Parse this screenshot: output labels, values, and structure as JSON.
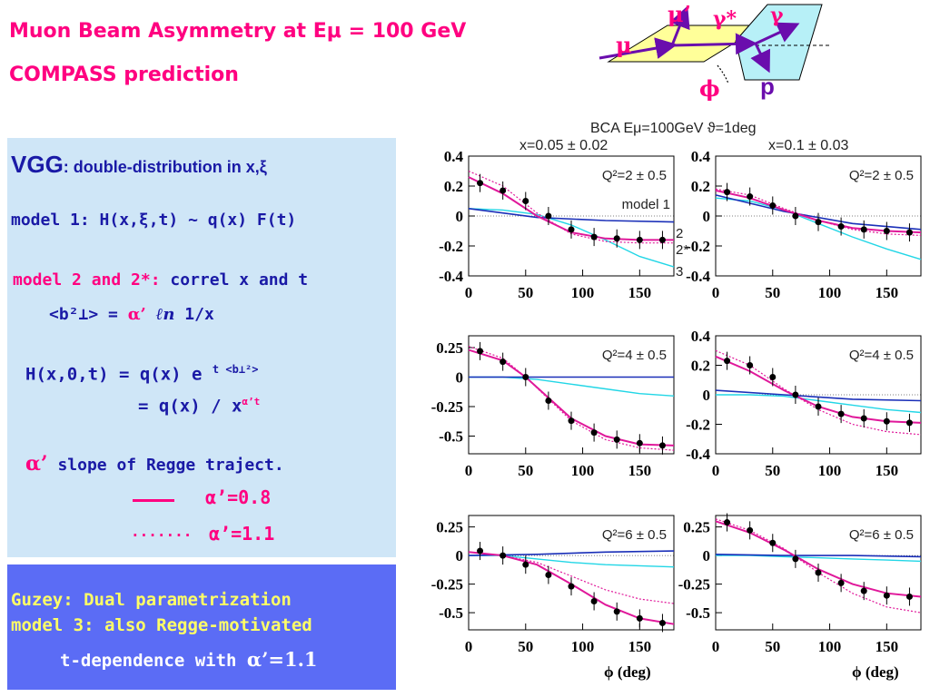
{
  "titles": {
    "line1": "Muon Beam Asymmetry at Eμ = 100 GeV",
    "line2": "COMPASS prediction"
  },
  "vgg_box": {
    "heading": "VGG",
    "heading_rest": ": double-distribution in x,ξ",
    "model1": "model 1: H(x,ξ,t) ~ q(x) F(t)",
    "model2_label": "model 2 and 2*:",
    "model2_text": "correl x and t",
    "b2_formula_lhs": "<b²⊥> =",
    "b2_formula_alpha": "α’",
    "b2_formula_ln": "ℓn",
    "b2_formula_rhs": "1/x",
    "h_formula_1": "H(x,0,t) = q(x) e",
    "h_formula_1_sup": "t <b⊥²>",
    "h_formula_2": "= q(x) / x",
    "h_formula_2_sup": "α’t",
    "alpha_symbol": "α’",
    "alpha_desc": "slope of Regge traject.",
    "legend_solid": "α’=0.8",
    "legend_dotted": "α’=1.1",
    "dotted_marker": "......."
  },
  "guzey_box": {
    "line1": "Guzey: Dual parametrization",
    "line2": "model 3:  also Regge-motivated",
    "line3": "t-dependence  with",
    "line3_alpha": "α’=1.1"
  },
  "diagram": {
    "mu": "μ",
    "mu_prime": "μ’",
    "gamma_star": "γ*",
    "gamma": "γ",
    "phi": "ϕ",
    "p": "p",
    "colors": {
      "plane1": "#ffff99",
      "plane2": "#b7f0f7",
      "arrow": "#6a0dad",
      "label": "#ff0080"
    }
  },
  "chart_header": {
    "main": "BCA   Eμ=100GeV   ϑ=1deg",
    "left": "x=0.05 ± 0.02",
    "right": "x=0.1 ± 0.03"
  },
  "chart_data": {
    "type": "line",
    "xlabel": "ϕ (deg)",
    "xlim": [
      0,
      180
    ],
    "xticks": [
      0,
      50,
      100,
      150
    ],
    "legend_labels": {
      "model1": "model 1",
      "model2": "2",
      "model2star": "2*",
      "model3": "3"
    },
    "colors": {
      "model1": "#1a2fb8",
      "model2": "#e0189a",
      "model2star": "#e0189a",
      "model3": "#22d6e6"
    },
    "panels": [
      {
        "id": "p11",
        "label": "Q²=2 ± 0.5",
        "ylim": [
          -0.4,
          0.4
        ],
        "yticks": [
          0.4,
          0.2,
          0,
          -0.2,
          -0.4
        ],
        "ytick_labels": [
          "0.4",
          "0.2",
          "0",
          "-0.2",
          "-0.4"
        ],
        "model1": {
          "x": [
            0,
            60,
            120,
            180
          ],
          "y": [
            0.05,
            -0.01,
            -0.03,
            -0.04
          ]
        },
        "model2": {
          "x": [
            0,
            30,
            60,
            90,
            120,
            150,
            180
          ],
          "y": [
            0.26,
            0.15,
            0.0,
            -0.11,
            -0.15,
            -0.16,
            -0.16
          ]
        },
        "model2star": {
          "x": [
            0,
            30,
            60,
            90,
            120,
            150,
            180
          ],
          "y": [
            0.3,
            0.2,
            0.02,
            -0.12,
            -0.17,
            -0.18,
            -0.18
          ]
        },
        "model3": {
          "x": [
            0,
            30,
            60,
            90,
            120,
            150,
            180
          ],
          "y": [
            0.05,
            0.04,
            0.01,
            -0.06,
            -0.16,
            -0.27,
            -0.34
          ]
        },
        "points": {
          "x": [
            10,
            30,
            50,
            70,
            90,
            110,
            130,
            150,
            170
          ],
          "y": [
            0.22,
            0.17,
            0.1,
            0.0,
            -0.09,
            -0.14,
            -0.15,
            -0.16,
            -0.16
          ]
        }
      },
      {
        "id": "p12",
        "label": "Q²=2 ± 0.5",
        "ylim": [
          -0.4,
          0.4
        ],
        "yticks": [
          0.4,
          0.2,
          0,
          -0.2,
          -0.4
        ],
        "ytick_labels": [
          "0.4",
          "0.2",
          "0",
          "-0.2",
          "-0.4"
        ],
        "model1": {
          "x": [
            0,
            60,
            120,
            180
          ],
          "y": [
            0.14,
            0.03,
            -0.05,
            -0.09
          ]
        },
        "model2": {
          "x": [
            0,
            30,
            60,
            90,
            120,
            150,
            180
          ],
          "y": [
            0.17,
            0.12,
            0.04,
            -0.03,
            -0.08,
            -0.1,
            -0.11
          ]
        },
        "model2star": {
          "x": [
            0,
            30,
            60,
            90,
            120,
            150,
            180
          ],
          "y": [
            0.18,
            0.14,
            0.05,
            -0.03,
            -0.09,
            -0.12,
            -0.13
          ]
        },
        "model3": {
          "x": [
            0,
            30,
            60,
            90,
            120,
            150,
            180
          ],
          "y": [
            0.12,
            0.1,
            0.04,
            -0.05,
            -0.14,
            -0.22,
            -0.29
          ]
        },
        "points": {
          "x": [
            10,
            30,
            50,
            70,
            90,
            110,
            130,
            150,
            170
          ],
          "y": [
            0.16,
            0.13,
            0.07,
            0.0,
            -0.04,
            -0.07,
            -0.09,
            -0.1,
            -0.11
          ]
        }
      },
      {
        "id": "p21",
        "label": "Q²=4 ± 0.5",
        "ylim": [
          -0.65,
          0.35
        ],
        "yticks": [
          0.25,
          0,
          -0.25,
          -0.5
        ],
        "ytick_labels": [
          "0.25",
          "0",
          "-0.25",
          "-0.5"
        ],
        "model1": {
          "x": [
            0,
            60,
            120,
            180
          ],
          "y": [
            0.0,
            0.0,
            0.0,
            0.0
          ]
        },
        "model2": {
          "x": [
            0,
            30,
            50,
            90,
            120,
            150,
            180
          ],
          "y": [
            0.23,
            0.14,
            0.0,
            -0.35,
            -0.5,
            -0.57,
            -0.58
          ]
        },
        "model2star": {
          "x": [
            0,
            30,
            50,
            90,
            120,
            150,
            180
          ],
          "y": [
            0.26,
            0.16,
            0.0,
            -0.37,
            -0.53,
            -0.6,
            -0.62
          ]
        },
        "model3": {
          "x": [
            0,
            30,
            60,
            90,
            120,
            150,
            180
          ],
          "y": [
            0.0,
            0.0,
            -0.02,
            -0.06,
            -0.1,
            -0.14,
            -0.16
          ]
        },
        "points": {
          "x": [
            10,
            30,
            50,
            70,
            90,
            110,
            130,
            150,
            170
          ],
          "y": [
            0.22,
            0.13,
            0.0,
            -0.2,
            -0.37,
            -0.47,
            -0.53,
            -0.56,
            -0.58
          ]
        }
      },
      {
        "id": "p22",
        "label": "Q²=4 ± 0.5",
        "ylim": [
          -0.4,
          0.4
        ],
        "yticks": [
          0.4,
          0.2,
          0,
          -0.2,
          -0.4
        ],
        "ytick_labels": [
          "0.4",
          "0.2",
          "0",
          "-0.2",
          "-0.4"
        ],
        "model1": {
          "x": [
            0,
            60,
            120,
            180
          ],
          "y": [
            0.03,
            0.0,
            -0.03,
            -0.04
          ]
        },
        "model2": {
          "x": [
            0,
            30,
            60,
            90,
            120,
            150,
            180
          ],
          "y": [
            0.26,
            0.16,
            0.03,
            -0.08,
            -0.15,
            -0.18,
            -0.19
          ]
        },
        "model2star": {
          "x": [
            0,
            30,
            60,
            90,
            120,
            150,
            180
          ],
          "y": [
            0.3,
            0.2,
            0.04,
            -0.1,
            -0.2,
            -0.25,
            -0.27
          ]
        },
        "model3": {
          "x": [
            0,
            30,
            60,
            90,
            120,
            150,
            180
          ],
          "y": [
            0.0,
            0.0,
            -0.01,
            -0.04,
            -0.07,
            -0.1,
            -0.12
          ]
        },
        "points": {
          "x": [
            10,
            30,
            50,
            70,
            90,
            110,
            130,
            150,
            170
          ],
          "y": [
            0.23,
            0.2,
            0.12,
            0.0,
            -0.08,
            -0.13,
            -0.16,
            -0.18,
            -0.19
          ]
        }
      },
      {
        "id": "p31",
        "label": "Q²=6 ± 0.5",
        "ylim": [
          -0.65,
          0.35
        ],
        "yticks": [
          0.25,
          0,
          -0.25,
          -0.5
        ],
        "ytick_labels": [
          "0.25",
          "0",
          "-0.25",
          "-0.5"
        ],
        "model1": {
          "x": [
            0,
            60,
            120,
            180
          ],
          "y": [
            0.0,
            0.01,
            0.03,
            0.04
          ]
        },
        "model2": {
          "x": [
            0,
            30,
            60,
            90,
            120,
            150,
            180
          ],
          "y": [
            0.03,
            0.0,
            -0.08,
            -0.25,
            -0.43,
            -0.55,
            -0.6
          ]
        },
        "model2star": {
          "x": [
            0,
            30,
            60,
            90,
            120,
            150,
            180
          ],
          "y": [
            0.03,
            0.0,
            -0.06,
            -0.18,
            -0.3,
            -0.38,
            -0.42
          ]
        },
        "model3": {
          "x": [
            0,
            30,
            60,
            90,
            120,
            150,
            180
          ],
          "y": [
            0.0,
            0.0,
            -0.03,
            -0.06,
            -0.08,
            -0.09,
            -0.1
          ]
        },
        "points": {
          "x": [
            10,
            30,
            50,
            70,
            90,
            110,
            130,
            150,
            170
          ],
          "y": [
            0.04,
            0.0,
            -0.08,
            -0.17,
            -0.27,
            -0.4,
            -0.49,
            -0.55,
            -0.59
          ]
        }
      },
      {
        "id": "p32",
        "label": "Q²=6 ± 0.5",
        "ylim": [
          -0.65,
          0.35
        ],
        "yticks": [
          0.25,
          0,
          -0.25,
          -0.5
        ],
        "ytick_labels": [
          "0.25",
          "0",
          "-0.25",
          "-0.5"
        ],
        "model1": {
          "x": [
            0,
            60,
            120,
            180
          ],
          "y": [
            0.01,
            0.0,
            0.0,
            -0.01
          ]
        },
        "model2": {
          "x": [
            0,
            30,
            60,
            90,
            120,
            150,
            180
          ],
          "y": [
            0.3,
            0.2,
            0.05,
            -0.12,
            -0.25,
            -0.33,
            -0.36
          ]
        },
        "model2star": {
          "x": [
            0,
            30,
            60,
            90,
            120,
            150,
            180
          ],
          "y": [
            0.32,
            0.22,
            0.06,
            -0.15,
            -0.33,
            -0.45,
            -0.5
          ]
        },
        "model3": {
          "x": [
            0,
            30,
            60,
            90,
            120,
            150,
            180
          ],
          "y": [
            0.0,
            0.0,
            -0.01,
            -0.02,
            -0.03,
            -0.04,
            -0.05
          ]
        },
        "points": {
          "x": [
            10,
            30,
            50,
            70,
            90,
            110,
            130,
            150,
            170
          ],
          "y": [
            0.29,
            0.22,
            0.11,
            -0.03,
            -0.15,
            -0.24,
            -0.31,
            -0.35,
            -0.36
          ]
        }
      }
    ]
  }
}
